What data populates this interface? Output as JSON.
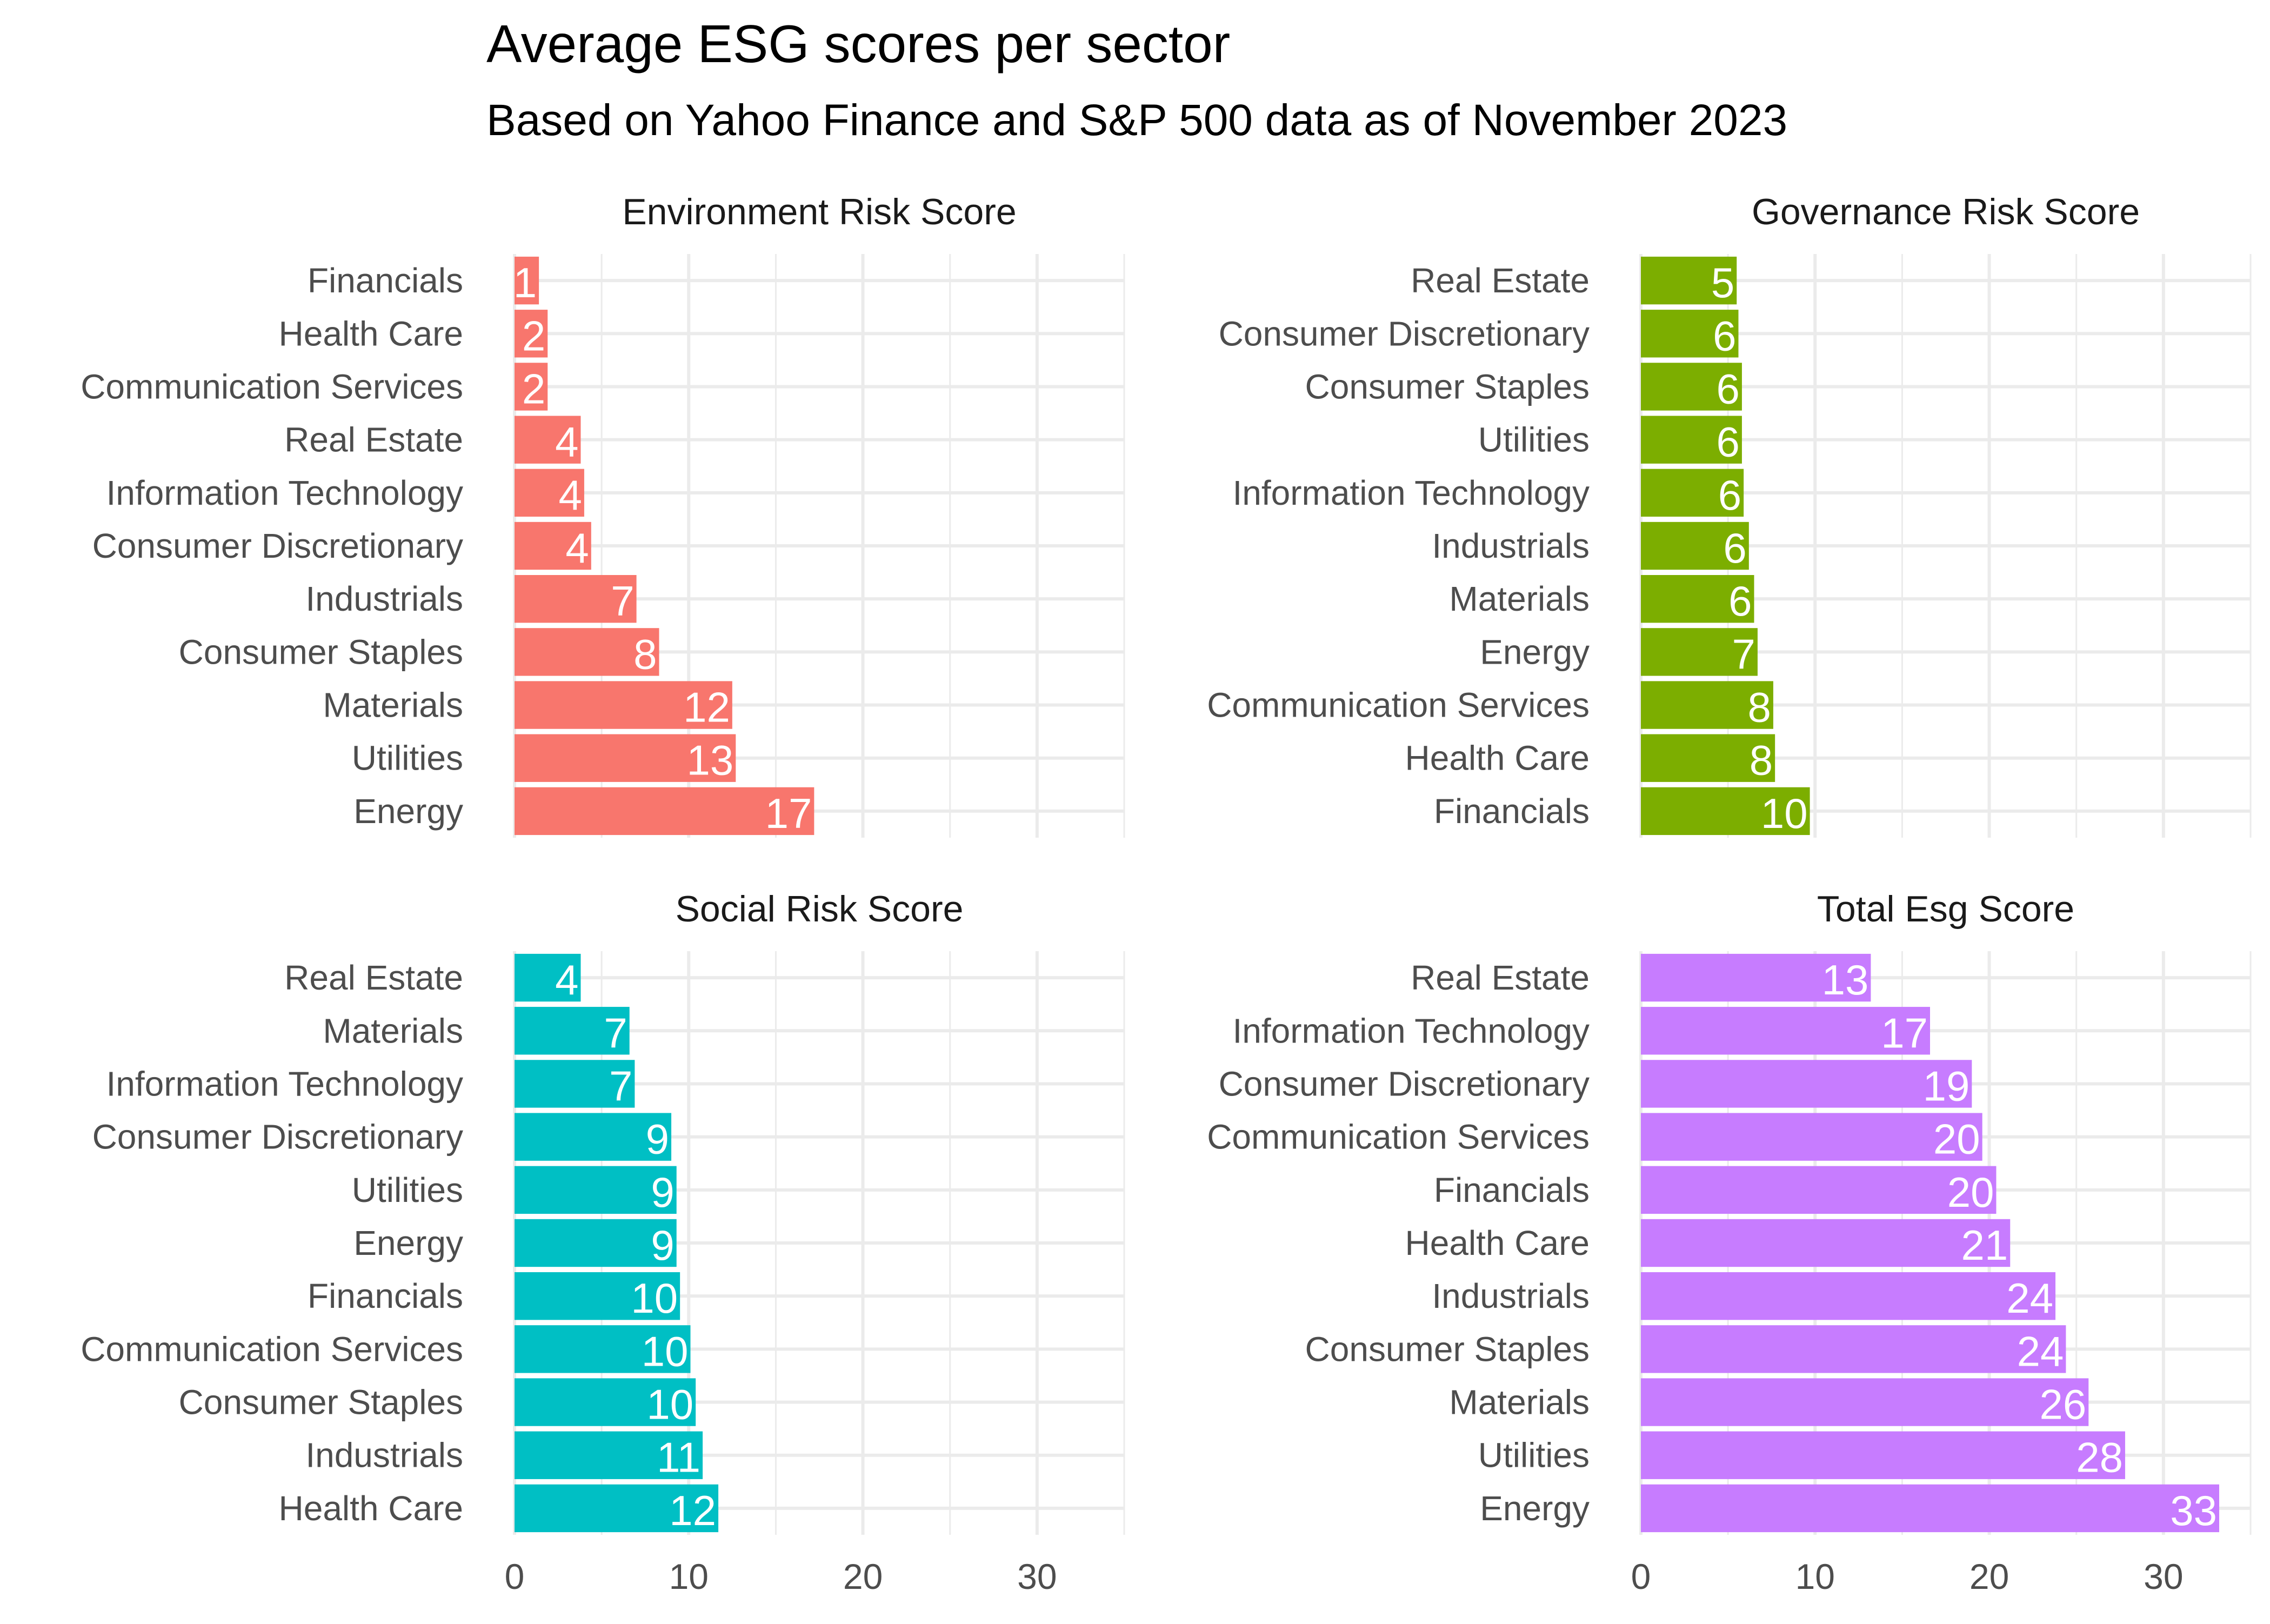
{
  "chart_data": {
    "type": "bar",
    "orientation": "horizontal",
    "title": "Average ESG scores per sector",
    "subtitle": "Based on Yahoo Finance and S&P 500 data as of November 2023",
    "xlim": [
      0,
      35
    ],
    "x_ticks": [
      "0",
      "10",
      "20",
      "30"
    ],
    "grid": true,
    "legend": "none",
    "panels": [
      {
        "title": "Environment Risk Score",
        "color": "#F8766D",
        "categories": [
          "Financials",
          "Health Care",
          "Communication Services",
          "Real Estate",
          "Information Technology",
          "Consumer Discretionary",
          "Industrials",
          "Consumer Staples",
          "Materials",
          "Utilities",
          "Energy"
        ],
        "values": [
          1.4,
          1.9,
          1.9,
          3.8,
          4.0,
          4.4,
          7.0,
          8.3,
          12.5,
          12.7,
          17.2
        ],
        "labels": [
          "1",
          "2",
          "2",
          "4",
          "4",
          "4",
          "7",
          "8",
          "12",
          "13",
          "17"
        ]
      },
      {
        "title": "Governance Risk Score",
        "color": "#7CAE00",
        "categories": [
          "Real Estate",
          "Consumer Discretionary",
          "Consumer Staples",
          "Utilities",
          "Information Technology",
          "Industrials",
          "Materials",
          "Energy",
          "Communication Services",
          "Health Care",
          "Financials"
        ],
        "values": [
          5.5,
          5.6,
          5.8,
          5.8,
          5.9,
          6.2,
          6.5,
          6.7,
          7.6,
          7.7,
          9.7
        ],
        "labels": [
          "5",
          "6",
          "6",
          "6",
          "6",
          "6",
          "6",
          "7",
          "8",
          "8",
          "10"
        ]
      },
      {
        "title": "Social Risk Score",
        "color": "#00BFC4",
        "categories": [
          "Real Estate",
          "Materials",
          "Information Technology",
          "Consumer Discretionary",
          "Utilities",
          "Energy",
          "Financials",
          "Communication Services",
          "Consumer Staples",
          "Industrials",
          "Health Care"
        ],
        "values": [
          3.8,
          6.6,
          6.9,
          9.0,
          9.3,
          9.3,
          9.5,
          10.1,
          10.4,
          10.8,
          11.7
        ],
        "labels": [
          "4",
          "7",
          "7",
          "9",
          "9",
          "9",
          "10",
          "10",
          "10",
          "11",
          "12"
        ]
      },
      {
        "title": "Total Esg Score",
        "color": "#C77CFF",
        "categories": [
          "Real Estate",
          "Information Technology",
          "Consumer Discretionary",
          "Communication Services",
          "Financials",
          "Health Care",
          "Industrials",
          "Consumer Staples",
          "Materials",
          "Utilities",
          "Energy"
        ],
        "values": [
          13.2,
          16.6,
          19.0,
          19.6,
          20.4,
          21.2,
          23.8,
          24.4,
          25.7,
          27.8,
          33.2
        ],
        "labels": [
          "13",
          "17",
          "19",
          "20",
          "20",
          "21",
          "24",
          "24",
          "26",
          "28",
          "33"
        ]
      }
    ]
  }
}
